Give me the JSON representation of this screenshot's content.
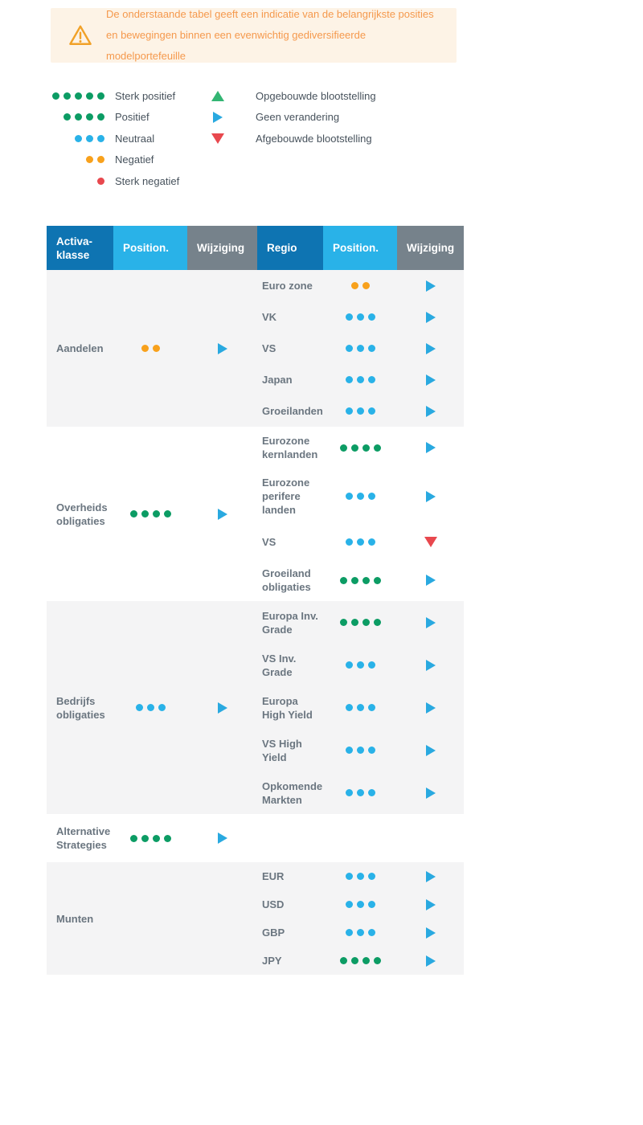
{
  "warning": {
    "icon": "warning-triangle-icon",
    "text": "De onderstaande tabel geeft een indicatie van de belangrijkste posities en bewegingen binnen een evenwichtig gediversifieerde modelportefeuille"
  },
  "legend": {
    "ratings": [
      {
        "label": "Sterk positief",
        "dots": 5,
        "dot_color": "green"
      },
      {
        "label": "Positief",
        "dots": 4,
        "dot_color": "green"
      },
      {
        "label": "Neutraal",
        "dots": 3,
        "dot_color": "blue"
      },
      {
        "label": "Negatief",
        "dots": 2,
        "dot_color": "orange"
      },
      {
        "label": "Sterk negatief",
        "dots": 1,
        "dot_color": "red"
      }
    ],
    "changes": [
      {
        "label": "Opgebouwde blootstelling",
        "icon": "triangle-up",
        "color": "green"
      },
      {
        "label": "Geen verandering",
        "icon": "triangle-right",
        "color": "blue"
      },
      {
        "label": "Afgebouwde blootstelling",
        "icon": "triangle-down",
        "color": "red"
      }
    ]
  },
  "table": {
    "headers": [
      "Activa-klasse",
      "Position.",
      "Wijziging",
      "Regio",
      "Position.",
      "Wijziging"
    ],
    "sections": [
      {
        "asset_class": "Aandelen",
        "dots": 2,
        "dot_color": "orange",
        "change": "none",
        "shaded": true,
        "regions": [
          {
            "name": "Euro zone",
            "dots": 2,
            "dot_color": "orange",
            "change": "none"
          },
          {
            "name": "VK",
            "dots": 3,
            "dot_color": "blue",
            "change": "none"
          },
          {
            "name": "VS",
            "dots": 3,
            "dot_color": "blue",
            "change": "none"
          },
          {
            "name": "Japan",
            "dots": 3,
            "dot_color": "blue",
            "change": "none"
          },
          {
            "name": "Groeilanden",
            "dots": 3,
            "dot_color": "blue",
            "change": "none"
          }
        ]
      },
      {
        "asset_class": "Overheids obligaties",
        "dots": 4,
        "dot_color": "green",
        "change": "none",
        "shaded": false,
        "regions": [
          {
            "name": "Eurozone kernlanden",
            "dots": 4,
            "dot_color": "green",
            "change": "none"
          },
          {
            "name": "Eurozone perifere landen",
            "dots": 3,
            "dot_color": "blue",
            "change": "none"
          },
          {
            "name": "VS",
            "dots": 3,
            "dot_color": "blue",
            "change": "down"
          },
          {
            "name": "Groeiland obligaties",
            "dots": 4,
            "dot_color": "green",
            "change": "none"
          }
        ]
      },
      {
        "asset_class": "Bedrijfs obligaties",
        "dots": 3,
        "dot_color": "blue",
        "change": "none",
        "shaded": true,
        "regions": [
          {
            "name": "Europa Inv. Grade",
            "dots": 4,
            "dot_color": "green",
            "change": "none"
          },
          {
            "name": "VS Inv. Grade",
            "dots": 3,
            "dot_color": "blue",
            "change": "none"
          },
          {
            "name": "Europa High Yield",
            "dots": 3,
            "dot_color": "blue",
            "change": "none"
          },
          {
            "name": "VS High Yield",
            "dots": 3,
            "dot_color": "blue",
            "change": "none"
          },
          {
            "name": "Opkomende Markten",
            "dots": 3,
            "dot_color": "blue",
            "change": "none"
          }
        ]
      },
      {
        "asset_class": "Alternative Strategies",
        "dots": 4,
        "dot_color": "green",
        "change": "none",
        "shaded": false,
        "regions": []
      },
      {
        "asset_class": "Munten",
        "dots": null,
        "dot_color": null,
        "change": null,
        "shaded": true,
        "regions": [
          {
            "name": "EUR",
            "dots": 3,
            "dot_color": "blue",
            "change": "none"
          },
          {
            "name": "USD",
            "dots": 3,
            "dot_color": "blue",
            "change": "none"
          },
          {
            "name": "GBP",
            "dots": 3,
            "dot_color": "blue",
            "change": "none"
          },
          {
            "name": "JPY",
            "dots": 4,
            "dot_color": "green",
            "change": "none"
          }
        ]
      }
    ]
  },
  "colors": {
    "green": "#0c9c64",
    "blue": "#29b2e8",
    "orange": "#f8a11c",
    "red": "#e8484e",
    "arrow_blue": "#29a9e0",
    "arrow_green": "#33b573",
    "arrow_red": "#e8484e",
    "header_dark": "#0e74b2",
    "header_light": "#29b2e8",
    "header_gray": "#76828b",
    "zebra_bg": "#f4f4f5",
    "warning_bg": "#fdf3e6",
    "warning_text": "#f5994d",
    "warning_icon": "#f1a128",
    "label_text": "#6b7680",
    "legend_text": "#47525c"
  }
}
